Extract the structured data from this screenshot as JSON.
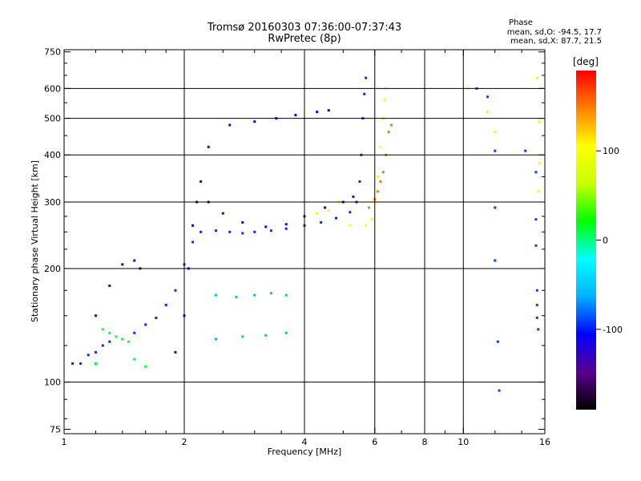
{
  "header": {
    "title_line1": "Tromsø 20160303 07:36:00-07:37:43",
    "title_line2": "RwPretec (8p)"
  },
  "phase_legend": {
    "heading": "Phase",
    "line_o": "mean, sd,O: -94.5, 17.7",
    "line_x": "mean, sd,X:  87.7, 21.5"
  },
  "colorbar": {
    "unit": "[deg]",
    "ticks": [
      {
        "label": "100",
        "value": 100
      },
      {
        "label": "0",
        "value": 0
      },
      {
        "label": "-100",
        "value": -100
      }
    ],
    "range": [
      -190,
      190
    ],
    "stops": [
      "#000000",
      "#5a0090",
      "#0000ff",
      "#00b0ff",
      "#00ffff",
      "#00ff00",
      "#c8ff00",
      "#ffff00",
      "#ff8000",
      "#ff0000"
    ]
  },
  "chart_data": {
    "type": "scatter",
    "xlabel": "Frequency [MHz]",
    "ylabel": "Stationary phase Virtual Height [km]",
    "x_scale": "log",
    "y_scale": "log",
    "xlim": [
      1,
      16
    ],
    "ylim": [
      73,
      760
    ],
    "grid": true,
    "x_ticks": [
      {
        "label": "1",
        "value": 1
      },
      {
        "label": "2",
        "value": 2
      },
      {
        "label": "4",
        "value": 4
      },
      {
        "label": "6",
        "value": 6
      },
      {
        "label": "8",
        "value": 8
      },
      {
        "label": "10",
        "value": 10
      },
      {
        "label": "16",
        "value": 16
      }
    ],
    "x_grid": [
      2,
      4,
      6,
      8,
      10
    ],
    "y_ticks": [
      {
        "label": "75",
        "value": 75
      },
      {
        "label": "100",
        "value": 100
      },
      {
        "label": "200",
        "value": 200
      },
      {
        "label": "300",
        "value": 300
      },
      {
        "label": "400",
        "value": 400
      },
      {
        "label": "500",
        "value": 500
      },
      {
        "label": "600",
        "value": 600
      },
      {
        "label": "750",
        "value": 750
      }
    ],
    "y_grid": [
      100,
      200,
      300,
      400,
      500,
      600
    ],
    "series": [
      {
        "phase": -95,
        "points": [
          [
            1.05,
            112
          ],
          [
            1.1,
            112
          ],
          [
            1.15,
            118
          ],
          [
            1.2,
            120
          ],
          [
            1.25,
            125
          ],
          [
            1.3,
            128
          ],
          [
            1.4,
            130
          ],
          [
            1.5,
            135
          ],
          [
            1.6,
            142
          ],
          [
            1.7,
            148
          ],
          [
            1.8,
            160
          ],
          [
            1.9,
            175
          ],
          [
            2.0,
            205
          ],
          [
            2.1,
            235
          ],
          [
            2.2,
            250
          ],
          [
            2.4,
            252
          ],
          [
            2.6,
            250
          ],
          [
            2.8,
            248
          ],
          [
            3.0,
            250
          ],
          [
            3.3,
            252
          ],
          [
            3.6,
            255
          ],
          [
            4.0,
            260
          ],
          [
            4.4,
            265
          ],
          [
            4.8,
            272
          ],
          [
            5.2,
            282
          ],
          [
            5.4,
            300
          ],
          [
            5.5,
            340
          ],
          [
            5.55,
            400
          ],
          [
            5.6,
            500
          ],
          [
            5.65,
            580
          ],
          [
            5.7,
            640
          ]
        ]
      },
      {
        "phase": -115,
        "points": [
          [
            1.9,
            120
          ],
          [
            2.0,
            150
          ],
          [
            2.05,
            200
          ],
          [
            2.1,
            260
          ],
          [
            2.15,
            300
          ],
          [
            2.2,
            340
          ],
          [
            2.3,
            420
          ],
          [
            2.6,
            480
          ],
          [
            3.0,
            490
          ],
          [
            3.4,
            500
          ],
          [
            3.8,
            510
          ],
          [
            4.3,
            520
          ],
          [
            4.6,
            525
          ]
        ]
      },
      {
        "phase": -125,
        "points": [
          [
            1.2,
            150
          ],
          [
            1.3,
            180
          ],
          [
            1.4,
            205
          ],
          [
            1.5,
            210
          ],
          [
            1.55,
            200
          ],
          [
            2.3,
            300
          ],
          [
            2.5,
            280
          ],
          [
            2.8,
            265
          ],
          [
            3.2,
            258
          ],
          [
            3.6,
            262
          ],
          [
            4.0,
            275
          ],
          [
            4.5,
            290
          ],
          [
            5.0,
            300
          ],
          [
            5.3,
            310
          ]
        ]
      },
      {
        "phase": -60,
        "points": [
          [
            2.4,
            170
          ],
          [
            2.7,
            168
          ],
          [
            3.0,
            170
          ],
          [
            3.3,
            172
          ],
          [
            3.6,
            170
          ],
          [
            2.4,
            130
          ],
          [
            2.8,
            132
          ],
          [
            3.2,
            133
          ],
          [
            3.6,
            135
          ]
        ]
      },
      {
        "phase": 10,
        "points": [
          [
            1.25,
            138
          ],
          [
            1.3,
            135
          ],
          [
            1.35,
            132
          ],
          [
            1.4,
            130
          ],
          [
            1.45,
            128
          ],
          [
            1.2,
            112
          ],
          [
            1.5,
            115
          ],
          [
            1.6,
            110
          ]
        ]
      },
      {
        "phase": 100,
        "points": [
          [
            4.3,
            280
          ],
          [
            4.6,
            285
          ],
          [
            4.9,
            300
          ],
          [
            5.2,
            260
          ],
          [
            5.7,
            260
          ],
          [
            5.9,
            270
          ],
          [
            6.0,
            300
          ],
          [
            6.1,
            350
          ],
          [
            6.2,
            420
          ],
          [
            6.3,
            500
          ],
          [
            6.35,
            560
          ],
          [
            6.4,
            600
          ]
        ]
      },
      {
        "phase": 150,
        "points": [
          [
            5.8,
            290
          ],
          [
            6.0,
            305
          ],
          [
            6.1,
            320
          ],
          [
            6.2,
            340
          ],
          [
            6.3,
            360
          ],
          [
            6.4,
            400
          ],
          [
            6.5,
            460
          ],
          [
            6.6,
            480
          ]
        ]
      },
      {
        "phase": -90,
        "points": [
          [
            10.8,
            600
          ],
          [
            11.5,
            570
          ],
          [
            12.0,
            410
          ],
          [
            12.0,
            290
          ],
          [
            12.0,
            210
          ],
          [
            12.2,
            128
          ],
          [
            12.3,
            95
          ],
          [
            14.3,
            410
          ],
          [
            15.2,
            360
          ],
          [
            15.2,
            270
          ],
          [
            15.2,
            230
          ],
          [
            15.3,
            175
          ],
          [
            15.3,
            160
          ],
          [
            15.3,
            148
          ],
          [
            15.4,
            138
          ]
        ]
      },
      {
        "phase": 90,
        "points": [
          [
            11.5,
            520
          ],
          [
            12.0,
            460
          ],
          [
            15.5,
            490
          ],
          [
            15.5,
            380
          ],
          [
            15.4,
            320
          ],
          [
            15.3,
            640
          ],
          [
            10.3,
            600
          ]
        ]
      }
    ]
  }
}
